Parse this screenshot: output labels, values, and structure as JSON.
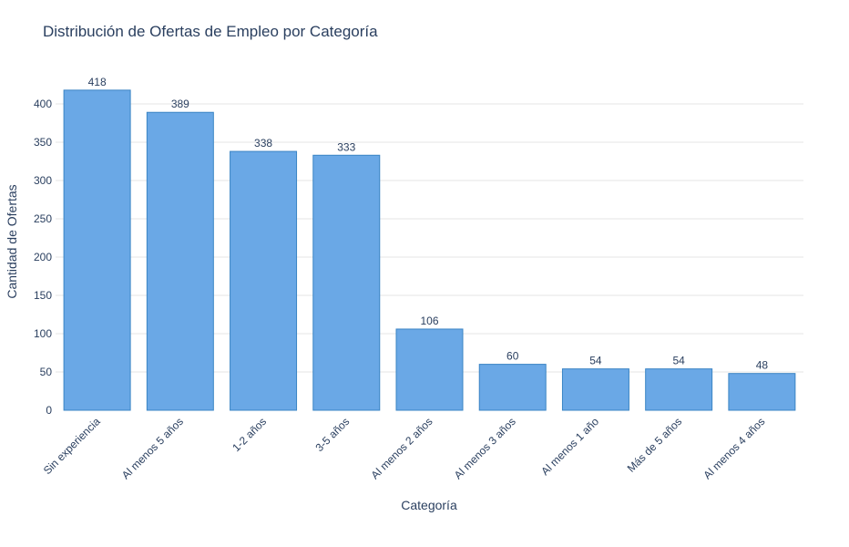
{
  "chart_data": {
    "type": "bar",
    "title": "Distribución de Ofertas de Empleo por Categoría",
    "xlabel": "Categoría",
    "ylabel": "Cantidad de Ofertas",
    "categories": [
      "Sin experiencia",
      "Al menos 5 años",
      "1-2 años",
      "3-5 años",
      "Al menos 2 años",
      "Al menos 3 años",
      "Al menos 1 año",
      "Más de 5 años",
      "Al menos 4 años"
    ],
    "values": [
      418,
      389,
      338,
      333,
      106,
      60,
      54,
      54,
      48
    ],
    "ylim": [
      0,
      432
    ],
    "yticks": [
      0,
      50,
      100,
      150,
      200,
      250,
      300,
      350,
      400
    ],
    "grid": true,
    "bar_color": "#6aa8e6",
    "bar_edge_color": "#3a84c4",
    "show_data_labels": true
  }
}
